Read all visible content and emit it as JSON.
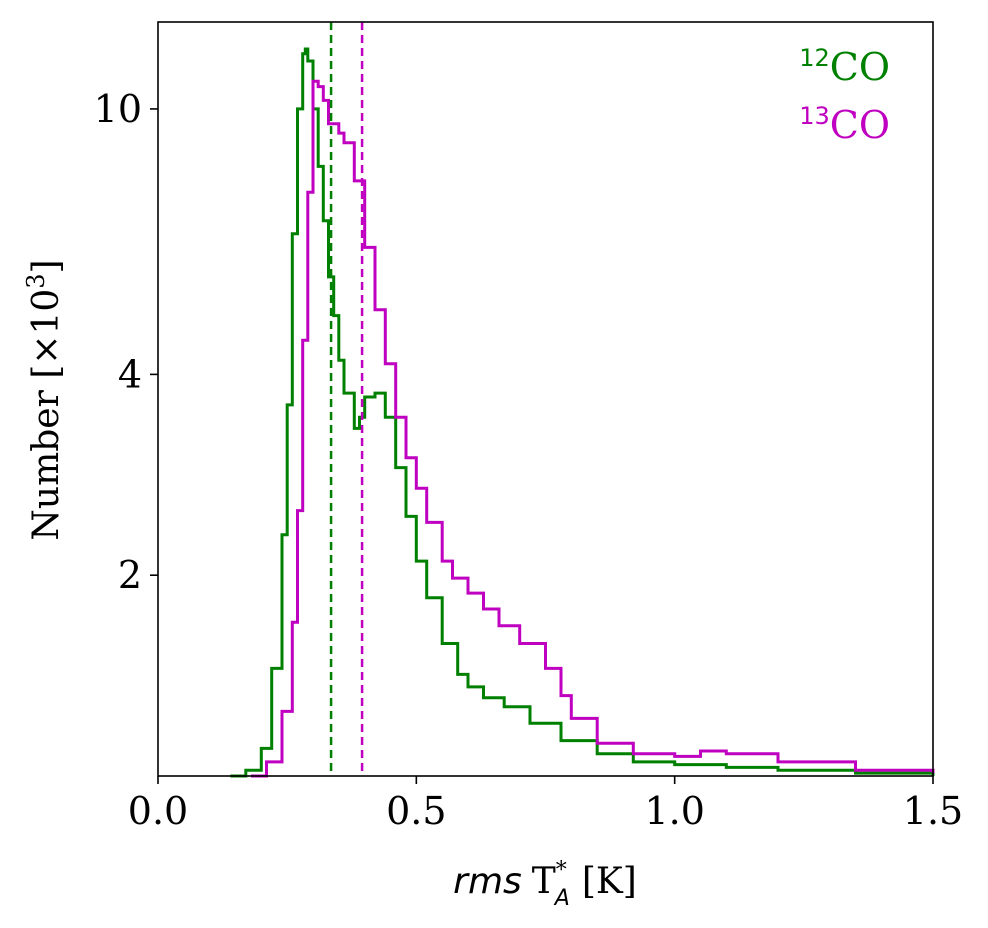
{
  "chart_data": {
    "type": "histogram",
    "xlabel": {
      "italic": "rms",
      "main": "T",
      "sup": "*",
      "sub": "A",
      "unit": "[K]"
    },
    "ylabel": {
      "text": "Number [×10",
      "sup": "3",
      "close": "]"
    },
    "xlim": [
      0.0,
      1.5
    ],
    "ylim": [
      1.0,
      13.5
    ],
    "yscale": "log",
    "x_ticks": [
      0.0,
      0.5,
      1.0,
      1.5
    ],
    "x_tick_labels": [
      "0.0",
      "0.5",
      "1.0",
      "1.5"
    ],
    "y_ticks": [
      2,
      4,
      10
    ],
    "y_tick_labels": [
      "2",
      "4",
      "10"
    ],
    "series": [
      {
        "name": "12CO",
        "label_sup": "12",
        "label_main": "CO",
        "color": "#008000",
        "median_line": 0.335,
        "x": [
          0.14,
          0.17,
          0.2,
          0.22,
          0.24,
          0.25,
          0.26,
          0.27,
          0.28,
          0.285,
          0.29,
          0.3,
          0.31,
          0.32,
          0.33,
          0.34,
          0.35,
          0.36,
          0.38,
          0.39,
          0.4,
          0.42,
          0.44,
          0.46,
          0.48,
          0.5,
          0.52,
          0.55,
          0.58,
          0.6,
          0.63,
          0.67,
          0.72,
          0.78,
          0.85,
          0.92,
          1.0,
          1.1,
          1.2,
          1.35,
          1.5
        ],
        "y": [
          1.0,
          1.02,
          1.1,
          1.45,
          2.3,
          3.6,
          6.5,
          10.0,
          12.1,
          12.3,
          11.8,
          10.0,
          8.2,
          6.8,
          5.6,
          4.9,
          4.2,
          3.75,
          3.32,
          3.45,
          3.7,
          3.75,
          3.45,
          2.9,
          2.45,
          2.1,
          1.85,
          1.58,
          1.42,
          1.36,
          1.31,
          1.27,
          1.2,
          1.13,
          1.08,
          1.05,
          1.04,
          1.03,
          1.02,
          1.01,
          1.0
        ]
      },
      {
        "name": "13CO",
        "label_sup": "13",
        "label_main": "CO",
        "color": "#c000c0",
        "median_line": 0.395,
        "x": [
          0.18,
          0.21,
          0.24,
          0.26,
          0.27,
          0.28,
          0.29,
          0.3,
          0.31,
          0.32,
          0.33,
          0.34,
          0.35,
          0.36,
          0.38,
          0.4,
          0.42,
          0.44,
          0.46,
          0.48,
          0.5,
          0.52,
          0.55,
          0.57,
          0.6,
          0.63,
          0.66,
          0.7,
          0.75,
          0.78,
          0.8,
          0.85,
          0.92,
          1.0,
          1.05,
          1.1,
          1.2,
          1.35,
          1.5
        ],
        "y": [
          1.0,
          1.05,
          1.25,
          1.7,
          2.5,
          4.5,
          7.5,
          11.0,
          10.8,
          10.3,
          9.5,
          9.5,
          9.2,
          8.9,
          7.8,
          6.2,
          5.0,
          4.15,
          3.45,
          3.0,
          2.7,
          2.4,
          2.1,
          1.98,
          1.88,
          1.78,
          1.68,
          1.58,
          1.45,
          1.32,
          1.22,
          1.12,
          1.08,
          1.07,
          1.09,
          1.08,
          1.05,
          1.02,
          1.01
        ]
      }
    ]
  }
}
